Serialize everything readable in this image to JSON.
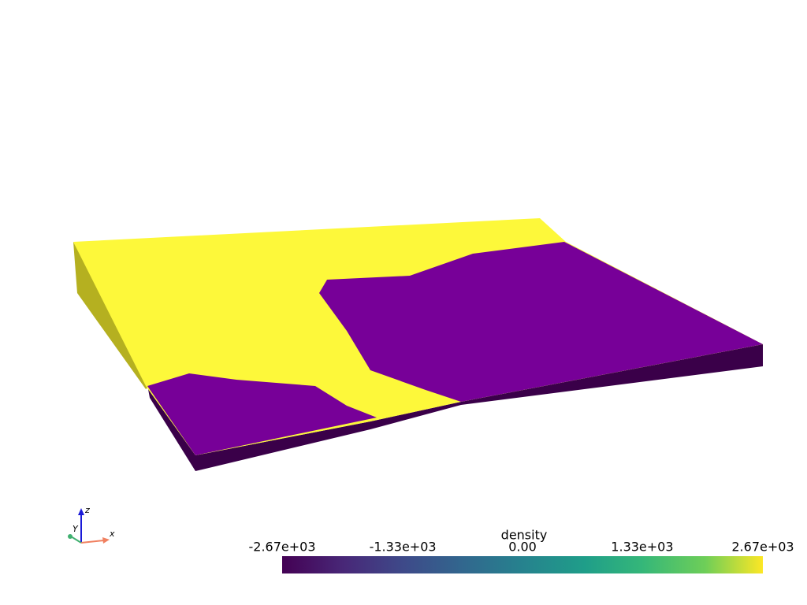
{
  "colorbar": {
    "title": "density",
    "lim": [
      -2670,
      2670
    ],
    "ticks": [
      {
        "value": -2670,
        "label": "-2.67e+03"
      },
      {
        "value": -1330,
        "label": "-1.33e+03"
      },
      {
        "value": 0,
        "label": "0.00"
      },
      {
        "value": 1330,
        "label": "1.33e+03"
      },
      {
        "value": 2670,
        "label": "2.67e+03"
      }
    ]
  },
  "axes_widget": {
    "x": "x",
    "y": "Y",
    "z": "z"
  }
}
